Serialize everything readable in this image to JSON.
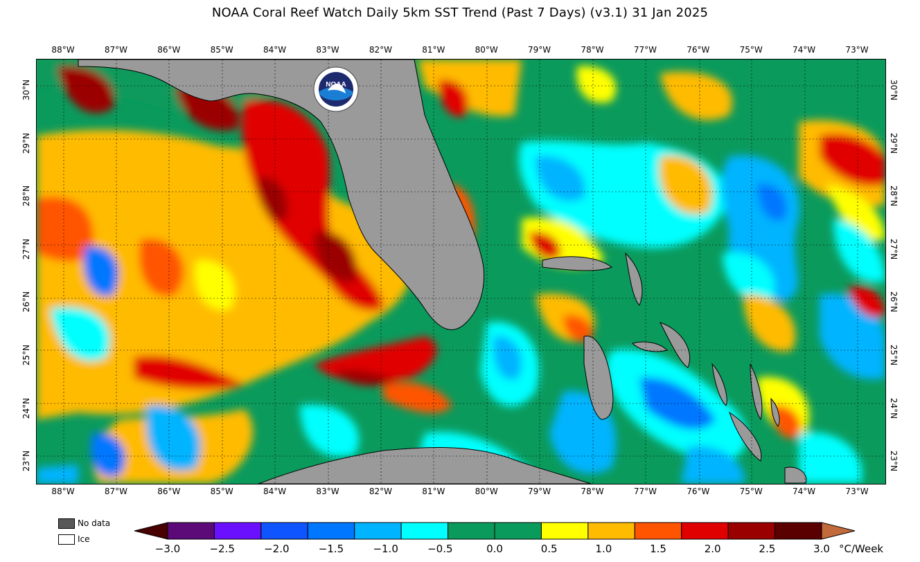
{
  "title": "NOAA Coral Reef Watch Daily 5km SST Trend (Past 7 Days)  (v3.1)   31 Jan 2025",
  "map": {
    "type": "sea-surface-temperature-trend",
    "region": "Gulf of Mexico, Florida, Bahamas",
    "lon_labels": [
      "88°W",
      "87°W",
      "86°W",
      "85°W",
      "84°W",
      "83°W",
      "82°W",
      "81°W",
      "80°W",
      "79°W",
      "78°W",
      "77°W",
      "76°W",
      "75°W",
      "74°W",
      "73°W"
    ],
    "lat_labels": [
      "30°N",
      "29°N",
      "28°N",
      "27°N",
      "26°N",
      "25°N",
      "24°N",
      "23°N"
    ],
    "land_color": "#9a9a9a",
    "logo_text": "NOAA"
  },
  "legend": {
    "no_data_label": "No data",
    "ice_label": "Ice",
    "no_data_color": "#595959",
    "ice_color": "#ffffff",
    "unit": "°C/Week",
    "ticks": [
      "−3.0",
      "−2.5",
      "−2.0",
      "−1.5",
      "−1.0",
      "−0.5",
      "0.0",
      "0.5",
      "1.0",
      "1.5",
      "2.0",
      "2.5",
      "3.0"
    ],
    "colors": [
      "#480000",
      "#5b0a78",
      "#6a10ff",
      "#0f55ff",
      "#0077ff",
      "#00b4ff",
      "#00ffff",
      "#0a9a5c",
      "#0a9a5c",
      "#ffff00",
      "#ffbb00",
      "#ff5500",
      "#e10000",
      "#9b0000",
      "#5a0000",
      "#c26a3c"
    ]
  }
}
